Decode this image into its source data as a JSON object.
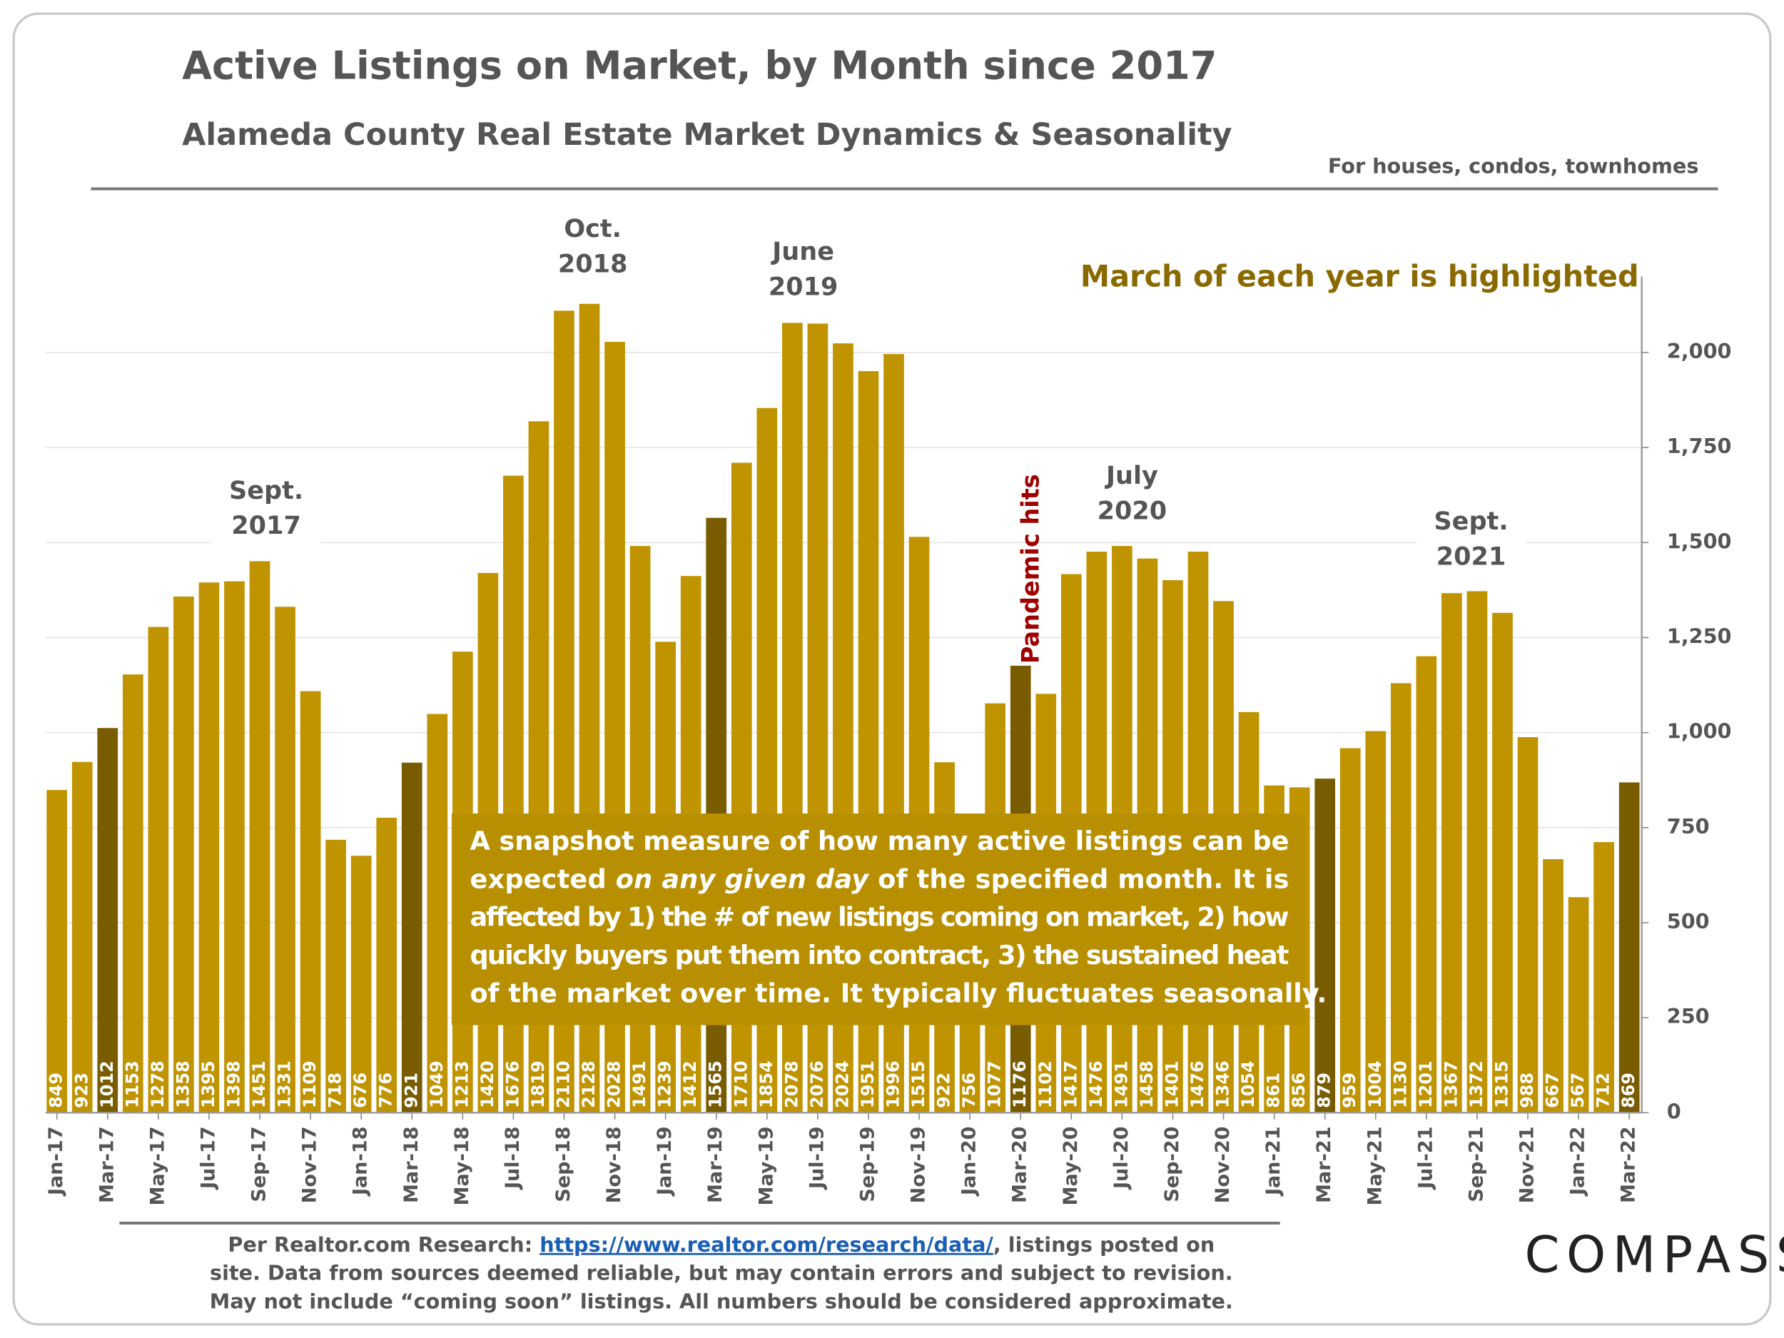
{
  "chart_data": {
    "type": "bar",
    "title": "Active Listings on Market, by Month since 2017",
    "subtitle": "Alameda County Real Estate Market Dynamics & Seasonality",
    "scope": "For houses, condos, townhomes",
    "highlight_note": "March of each year is highlighted",
    "categories": [
      "Jan-17",
      null,
      "Mar-17",
      null,
      "May-17",
      null,
      "Jul-17",
      null,
      "Sep-17",
      null,
      "Nov-17",
      null,
      "Jan-18",
      null,
      "Mar-18",
      null,
      "May-18",
      null,
      "Jul-18",
      null,
      "Sep-18",
      null,
      "Nov-18",
      null,
      "Jan-19",
      null,
      "Mar-19",
      null,
      "May-19",
      null,
      "Jul-19",
      null,
      "Sep-19",
      null,
      "Nov-19",
      null,
      "Jan-20",
      null,
      "Mar-20",
      null,
      "May-20",
      null,
      "Jul-20",
      null,
      "Sep-20",
      null,
      "Nov-20",
      null,
      "Jan-21",
      null,
      "Mar-21",
      null,
      "May-21",
      null,
      "Jul-21",
      null,
      "Sep-21",
      null,
      "Nov-21",
      null,
      "Jan-22",
      null,
      "Mar-22"
    ],
    "values": [
      849,
      923,
      1012,
      1153,
      1278,
      1358,
      1395,
      1398,
      1451,
      1331,
      1109,
      718,
      676,
      776,
      921,
      1049,
      1213,
      1420,
      1676,
      1819,
      2110,
      2128,
      2028,
      1491,
      1239,
      1412,
      1565,
      1710,
      1854,
      2078,
      2076,
      2024,
      1951,
      1996,
      1515,
      922,
      756,
      1077,
      1176,
      1102,
      1417,
      1476,
      1491,
      1458,
      1401,
      1476,
      1346,
      1054,
      861,
      856,
      879,
      959,
      1004,
      1130,
      1201,
      1367,
      1372,
      1315,
      988,
      667,
      567,
      712,
      869
    ],
    "color": "#c09400",
    "highlight_color": "#7a5c00",
    "highlighted": [
      2,
      14,
      26,
      38,
      50,
      62
    ],
    "ylim": [
      0,
      2200
    ],
    "yticks": [
      0,
      250,
      500,
      750,
      {
        "value": 1000,
        "label": "1,000"
      },
      {
        "value": 1250,
        "label": "1,250"
      },
      {
        "value": 1500,
        "label": "1,500"
      },
      {
        "value": 1750,
        "label": "1,750"
      },
      {
        "value": 2000,
        "label": "2,000"
      }
    ],
    "y_axis_side": "right",
    "grid": true,
    "annotations": [
      [
        "Sept.",
        "2017"
      ],
      [
        "Oct.",
        "2018"
      ],
      [
        "June",
        "2019"
      ],
      [
        "July",
        "2020"
      ],
      [
        "Sept.",
        "2021"
      ]
    ],
    "event_label": "Pandemic hits",
    "note": [
      [
        {
          "text": "A snapshot measure of how many active listings can be"
        }
      ],
      [
        {
          "text": "expected "
        },
        {
          "text": "on any given day",
          "italic": true
        },
        {
          "text": " of the specified month. It is"
        }
      ],
      [
        {
          "text": "affected by 1) the # of new listings coming on market, 2) how"
        }
      ],
      [
        {
          "text": "quickly buyers put them into contract, 3) the sustained heat"
        }
      ],
      [
        {
          "text": "of the market over time. It typically fluctuates seasonally."
        }
      ]
    ],
    "footer": [
      [
        {
          "text": "Per Realtor.com Research:  "
        },
        {
          "text": "https://www.realtor.com/research/data/",
          "link": true
        },
        {
          "text": ", listings posted on"
        }
      ],
      [
        {
          "text": "site. Data from sources deemed reliable, but may contain errors and subject to revision."
        }
      ],
      [
        {
          "text": "May not include “coming soon” listings. All numbers should be considered approximate."
        }
      ]
    ],
    "brand": "COMPASS"
  }
}
